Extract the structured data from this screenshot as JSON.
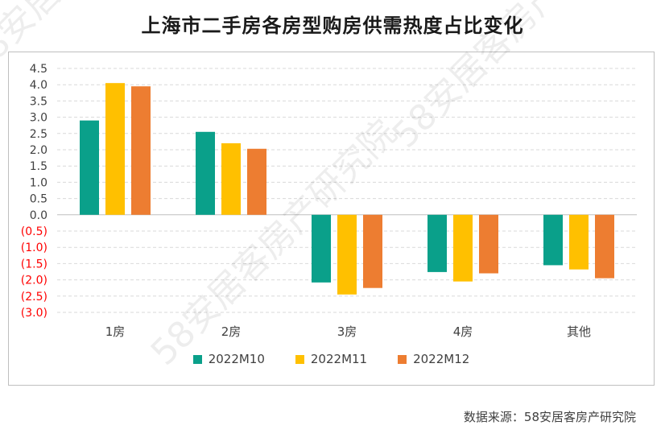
{
  "chart_data": {
    "type": "bar",
    "title": "上海市二手房各房型购房供需热度占比变化",
    "categories": [
      "1房",
      "2房",
      "3房",
      "4房",
      "其他"
    ],
    "series": [
      {
        "name": "2022M10",
        "color": "#0aa08a",
        "values": [
          2.9,
          2.55,
          -2.08,
          -1.76,
          -1.55
        ]
      },
      {
        "name": "2022M11",
        "color": "#ffc000",
        "values": [
          4.05,
          2.2,
          -2.45,
          -2.05,
          -1.68
        ]
      },
      {
        "name": "2022M12",
        "color": "#ed7d31",
        "values": [
          3.95,
          2.03,
          -2.25,
          -1.8,
          -1.95
        ]
      }
    ],
    "ylim": [
      -3.0,
      4.5
    ],
    "yticks": [
      "4.5",
      "4.0",
      "3.5",
      "3.0",
      "2.5",
      "2.0",
      "1.5",
      "1.0",
      "0.5",
      "0.0",
      "(0.5)",
      "(1.0)",
      "(1.5)",
      "(2.0)",
      "(2.5)",
      "(3.0)"
    ],
    "negative_tick_color": "#ff0000",
    "grid": true,
    "legend_position": "bottom"
  },
  "source_note": "数据来源：58安居客房产研究院",
  "watermark_text": "58安居客房产研究院"
}
